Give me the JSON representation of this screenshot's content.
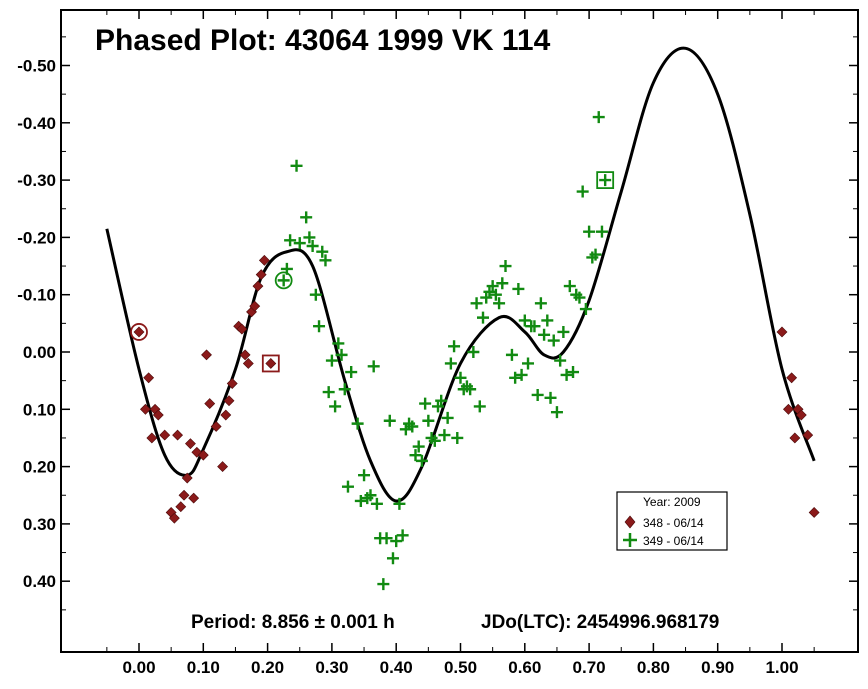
{
  "colors": {
    "series1": "#8b1a1a",
    "series2": "#118a11",
    "fit_curve": "#000000",
    "background": "#ffffff"
  },
  "chart_data": {
    "type": "scatter",
    "title": "Phased Plot: 43064 1999 VK 114",
    "footer": {
      "period": "Period: 8.856 ± 0.001 h",
      "epoch": "JDo(LTC): 2454996.968179"
    },
    "xlim": [
      -0.12,
      1.12
    ],
    "ylim": [
      -0.57,
      0.52
    ],
    "y_inverted": true,
    "grid": false,
    "legend_position": "bottom-right",
    "x_ticks": [
      0.0,
      0.1,
      0.2,
      0.3,
      0.4,
      0.5,
      0.6,
      0.7,
      0.8,
      0.9,
      1.0
    ],
    "x_tick_labels": [
      "0.00",
      "0.10",
      "0.20",
      "0.30",
      "0.40",
      "0.50",
      "0.60",
      "0.70",
      "0.80",
      "0.90",
      "1.00"
    ],
    "y_ticks": [
      -0.5,
      -0.4,
      -0.3,
      -0.2,
      -0.1,
      0.0,
      0.1,
      0.2,
      0.3,
      0.4
    ],
    "y_tick_labels": [
      "-0.50",
      "-0.40",
      "-0.30",
      "-0.20",
      "-0.10",
      "0.00",
      "0.10",
      "0.20",
      "0.30",
      "0.40"
    ],
    "legend": {
      "title": "Year: 2009",
      "entries": [
        "348 - 06/14",
        "349 - 06/14"
      ]
    },
    "series": [
      {
        "name": "348 - 06/14",
        "marker": "diamond",
        "reference_point": [
          0.0,
          -0.035
        ],
        "points": [
          [
            0.0,
            -0.035
          ],
          [
            0.01,
            0.1
          ],
          [
            0.015,
            0.045
          ],
          [
            0.02,
            0.15
          ],
          [
            0.025,
            0.1
          ],
          [
            0.03,
            0.11
          ],
          [
            0.04,
            0.145
          ],
          [
            0.05,
            0.28
          ],
          [
            0.055,
            0.29
          ],
          [
            0.06,
            0.145
          ],
          [
            0.065,
            0.27
          ],
          [
            0.07,
            0.25
          ],
          [
            0.075,
            0.22
          ],
          [
            0.08,
            0.16
          ],
          [
            0.085,
            0.255
          ],
          [
            0.09,
            0.175
          ],
          [
            0.1,
            0.18
          ],
          [
            0.105,
            0.005
          ],
          [
            0.11,
            0.09
          ],
          [
            0.12,
            0.13
          ],
          [
            0.13,
            0.2
          ],
          [
            0.135,
            0.11
          ],
          [
            0.14,
            0.085
          ],
          [
            0.145,
            0.055
          ],
          [
            0.155,
            -0.045
          ],
          [
            0.16,
            -0.04
          ],
          [
            0.165,
            0.005
          ],
          [
            0.17,
            0.02
          ],
          [
            0.175,
            -0.07
          ],
          [
            0.18,
            -0.08
          ],
          [
            0.185,
            -0.115
          ],
          [
            0.19,
            -0.135
          ],
          [
            0.195,
            -0.16
          ],
          [
            0.205,
            0.02
          ],
          [
            1.0,
            -0.035
          ],
          [
            1.01,
            0.1
          ],
          [
            1.015,
            0.045
          ],
          [
            1.02,
            0.15
          ],
          [
            1.025,
            0.1
          ],
          [
            1.03,
            0.11
          ],
          [
            1.04,
            0.145
          ],
          [
            1.05,
            0.28
          ]
        ]
      },
      {
        "name": "349 - 06/14",
        "marker": "plus",
        "reference_point": [
          0.225,
          -0.125
        ],
        "points": [
          [
            0.225,
            -0.125
          ],
          [
            0.23,
            -0.145
          ],
          [
            0.235,
            -0.195
          ],
          [
            0.245,
            -0.325
          ],
          [
            0.25,
            -0.19
          ],
          [
            0.26,
            -0.235
          ],
          [
            0.265,
            -0.2
          ],
          [
            0.27,
            -0.185
          ],
          [
            0.275,
            -0.1
          ],
          [
            0.28,
            -0.045
          ],
          [
            0.285,
            -0.175
          ],
          [
            0.29,
            -0.16
          ],
          [
            0.295,
            0.07
          ],
          [
            0.3,
            0.015
          ],
          [
            0.305,
            0.095
          ],
          [
            0.31,
            -0.015
          ],
          [
            0.315,
            0.005
          ],
          [
            0.32,
            0.065
          ],
          [
            0.325,
            0.235
          ],
          [
            0.33,
            0.035
          ],
          [
            0.34,
            0.125
          ],
          [
            0.345,
            0.26
          ],
          [
            0.35,
            0.215
          ],
          [
            0.355,
            0.255
          ],
          [
            0.36,
            0.25
          ],
          [
            0.365,
            0.025
          ],
          [
            0.37,
            0.265
          ],
          [
            0.375,
            0.325
          ],
          [
            0.38,
            0.405
          ],
          [
            0.385,
            0.325
          ],
          [
            0.39,
            0.12
          ],
          [
            0.395,
            0.36
          ],
          [
            0.4,
            0.33
          ],
          [
            0.405,
            0.265
          ],
          [
            0.41,
            0.32
          ],
          [
            0.415,
            0.135
          ],
          [
            0.42,
            0.125
          ],
          [
            0.425,
            0.13
          ],
          [
            0.43,
            0.18
          ],
          [
            0.435,
            0.165
          ],
          [
            0.44,
            0.19
          ],
          [
            0.445,
            0.09
          ],
          [
            0.45,
            0.12
          ],
          [
            0.455,
            0.15
          ],
          [
            0.46,
            0.155
          ],
          [
            0.465,
            0.095
          ],
          [
            0.47,
            0.085
          ],
          [
            0.475,
            0.145
          ],
          [
            0.48,
            0.115
          ],
          [
            0.485,
            0.02
          ],
          [
            0.49,
            -0.01
          ],
          [
            0.495,
            0.15
          ],
          [
            0.5,
            0.045
          ],
          [
            0.505,
            0.065
          ],
          [
            0.51,
            0.06
          ],
          [
            0.515,
            0.065
          ],
          [
            0.52,
            0.0
          ],
          [
            0.525,
            -0.085
          ],
          [
            0.53,
            0.095
          ],
          [
            0.535,
            -0.06
          ],
          [
            0.54,
            -0.095
          ],
          [
            0.545,
            -0.105
          ],
          [
            0.55,
            -0.115
          ],
          [
            0.555,
            -0.1
          ],
          [
            0.56,
            -0.085
          ],
          [
            0.565,
            -0.12
          ],
          [
            0.57,
            -0.15
          ],
          [
            0.58,
            0.005
          ],
          [
            0.585,
            0.045
          ],
          [
            0.59,
            -0.11
          ],
          [
            0.595,
            0.04
          ],
          [
            0.6,
            -0.055
          ],
          [
            0.605,
            0.02
          ],
          [
            0.61,
            -0.045
          ],
          [
            0.615,
            -0.045
          ],
          [
            0.62,
            0.075
          ],
          [
            0.625,
            -0.085
          ],
          [
            0.63,
            -0.03
          ],
          [
            0.635,
            -0.055
          ],
          [
            0.64,
            0.08
          ],
          [
            0.645,
            -0.02
          ],
          [
            0.65,
            0.105
          ],
          [
            0.655,
            0.015
          ],
          [
            0.66,
            -0.035
          ],
          [
            0.665,
            0.04
          ],
          [
            0.67,
            -0.115
          ],
          [
            0.675,
            0.035
          ],
          [
            0.68,
            -0.1
          ],
          [
            0.685,
            -0.095
          ],
          [
            0.69,
            -0.28
          ],
          [
            0.695,
            -0.075
          ],
          [
            0.7,
            -0.21
          ],
          [
            0.705,
            -0.165
          ],
          [
            0.71,
            -0.17
          ],
          [
            0.715,
            -0.41
          ],
          [
            0.72,
            -0.21
          ],
          [
            0.725,
            -0.3
          ]
        ]
      }
    ],
    "fit_curve": {
      "x_range": [
        -0.05,
        1.05
      ],
      "points": [
        [
          -0.05,
          -0.215
        ],
        [
          0.0,
          0.03
        ],
        [
          0.04,
          0.18
        ],
        [
          0.075,
          0.215
        ],
        [
          0.1,
          0.17
        ],
        [
          0.15,
          0.03
        ],
        [
          0.19,
          -0.13
        ],
        [
          0.23,
          -0.175
        ],
        [
          0.27,
          -0.15
        ],
        [
          0.32,
          0.05
        ],
        [
          0.36,
          0.19
        ],
        [
          0.4,
          0.26
        ],
        [
          0.44,
          0.2
        ],
        [
          0.5,
          0.02
        ],
        [
          0.56,
          -0.06
        ],
        [
          0.6,
          -0.035
        ],
        [
          0.63,
          0.005
        ],
        [
          0.66,
          0.0
        ],
        [
          0.7,
          -0.09
        ],
        [
          0.75,
          -0.28
        ],
        [
          0.8,
          -0.47
        ],
        [
          0.85,
          -0.53
        ],
        [
          0.9,
          -0.45
        ],
        [
          0.95,
          -0.24
        ],
        [
          1.0,
          0.03
        ],
        [
          1.05,
          0.19
        ]
      ]
    }
  }
}
